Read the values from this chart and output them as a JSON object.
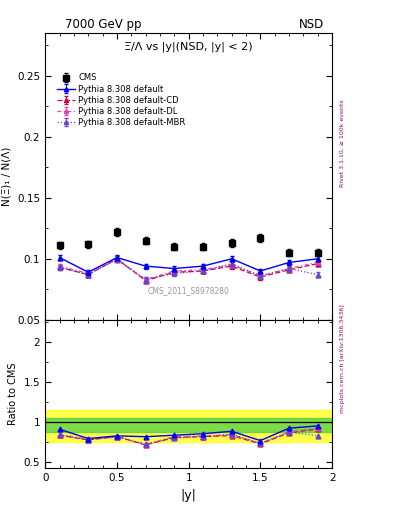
{
  "title_left": "7000 GeV pp",
  "title_right": "NSD",
  "plot_title": "Ξ̅/Λ vs |y|(NSD, |y| < 2)",
  "xlabel": "|y|",
  "ylabel_main": "N(Ξ)₁ / N(Λ)",
  "ylabel_ratio": "Ratio to CMS",
  "watermark": "CMS_2011_S8978280",
  "right_label_top": "Rivet 3.1.10, ≥ 100k events",
  "right_label_bot": "mcplots.cern.ch [arXiv:1306.3436]",
  "x_data": [
    0.1,
    0.3,
    0.5,
    0.7,
    0.9,
    1.1,
    1.3,
    1.5,
    1.7,
    1.9
  ],
  "cms_y": [
    0.111,
    0.112,
    0.122,
    0.115,
    0.11,
    0.11,
    0.113,
    0.117,
    0.105,
    0.105
  ],
  "cms_yerr": [
    0.003,
    0.003,
    0.003,
    0.003,
    0.003,
    0.003,
    0.003,
    0.003,
    0.003,
    0.003
  ],
  "py_default_y": [
    0.101,
    0.089,
    0.101,
    0.094,
    0.092,
    0.094,
    0.1,
    0.09,
    0.097,
    0.1
  ],
  "py_default_yerr": [
    0.002,
    0.002,
    0.002,
    0.002,
    0.002,
    0.002,
    0.002,
    0.002,
    0.002,
    0.002
  ],
  "py_cd_y": [
    0.093,
    0.087,
    0.1,
    0.082,
    0.089,
    0.09,
    0.094,
    0.085,
    0.091,
    0.096
  ],
  "py_cd_yerr": [
    0.002,
    0.002,
    0.002,
    0.002,
    0.002,
    0.002,
    0.002,
    0.002,
    0.002,
    0.002
  ],
  "py_dl_y": [
    0.094,
    0.088,
    0.099,
    0.083,
    0.09,
    0.091,
    0.095,
    0.086,
    0.092,
    0.097
  ],
  "py_dl_yerr": [
    0.002,
    0.002,
    0.002,
    0.002,
    0.002,
    0.002,
    0.002,
    0.002,
    0.002,
    0.002
  ],
  "py_mbr_y": [
    0.093,
    0.087,
    0.1,
    0.083,
    0.088,
    0.09,
    0.096,
    0.086,
    0.092,
    0.087
  ],
  "py_mbr_yerr": [
    0.002,
    0.002,
    0.002,
    0.002,
    0.002,
    0.002,
    0.002,
    0.002,
    0.002,
    0.002
  ],
  "color_default": "#0000ee",
  "color_cd": "#cc0044",
  "color_dl": "#dd44aa",
  "color_mbr": "#6644cc",
  "color_cms": "#000000",
  "xlim": [
    0.0,
    2.0
  ],
  "ylim_main": [
    0.05,
    0.285
  ],
  "ylim_ratio": [
    0.42,
    2.28
  ],
  "ratio_band_yellow": [
    0.75,
    1.15
  ],
  "ratio_band_green": [
    0.875,
    1.05
  ],
  "yticks_main": [
    0.05,
    0.1,
    0.15,
    0.2,
    0.25
  ],
  "ytick_labels_main": [
    "0.05",
    "0.1",
    "0.15",
    "0.2",
    "0.25"
  ],
  "yticks_ratio": [
    0.5,
    1.0,
    1.5,
    2.0
  ],
  "ytick_labels_ratio": [
    "0.5",
    "1",
    "1.5",
    "2"
  ],
  "xticks": [
    0.0,
    0.5,
    1.0,
    1.5,
    2.0
  ],
  "xtick_labels": [
    "0",
    "0.5",
    "1",
    "1.5",
    "2"
  ]
}
